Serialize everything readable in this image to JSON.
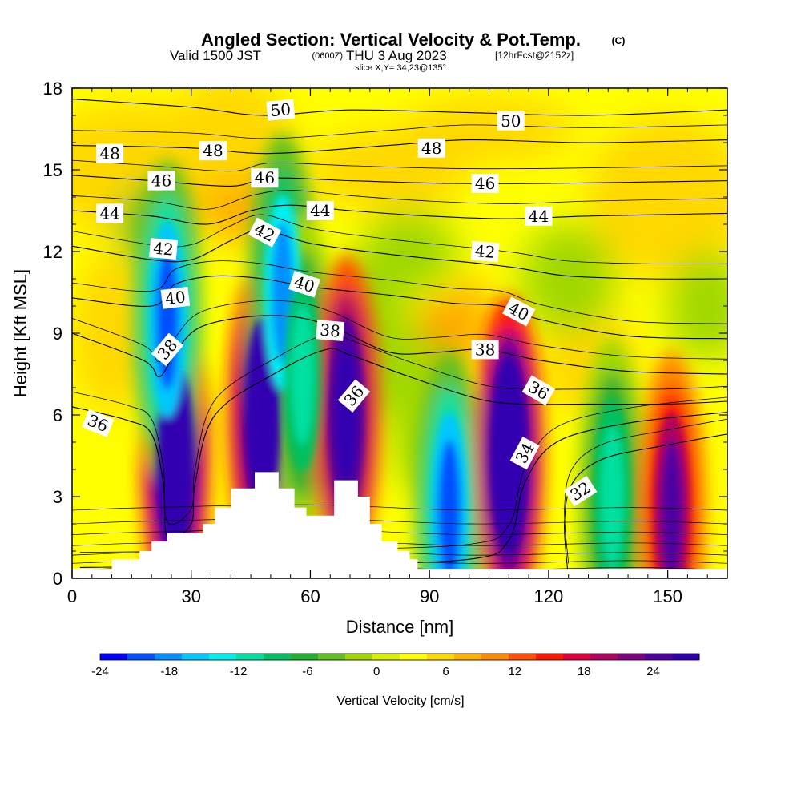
{
  "header": {
    "title": "Angled Section: Vertical Velocity & Pot.Temp.",
    "title_unit": "(C)",
    "valid_prefix": "Valid 1500 JST",
    "valid_utc": "(0600Z)",
    "valid_date": "THU 3 Aug 2023",
    "forecast": "[12hrFcst@2152z]",
    "slice": "slice X,Y= 34,23@135°"
  },
  "chart_data": {
    "type": "heatmap",
    "xlabel": "Distance [nm]",
    "ylabel": "Height [Kft MSL]",
    "xlim": [
      0,
      165
    ],
    "ylim": [
      0,
      18
    ],
    "xticks": [
      0,
      30,
      60,
      90,
      120,
      150
    ],
    "yticks": [
      0,
      3,
      6,
      9,
      12,
      15,
      18
    ],
    "colorbar": {
      "title": "Vertical Velocity [cm/s]",
      "min": -24,
      "max": 28,
      "step": 2,
      "tick_values": [
        -24,
        -18,
        -12,
        -6,
        0,
        6,
        12,
        18,
        24
      ],
      "tick_labels": [
        "-24",
        "-18",
        "-12",
        "-6",
        "0",
        "6",
        "12",
        "18",
        "24"
      ],
      "colors": [
        "#0000ff",
        "#0050ff",
        "#0090ff",
        "#00c8ff",
        "#00f0f0",
        "#00e0a0",
        "#00c060",
        "#20b030",
        "#60c020",
        "#a0d800",
        "#d8f000",
        "#ffff00",
        "#ffd800",
        "#ffb000",
        "#ff8800",
        "#ff5000",
        "#ff1800",
        "#e00040",
        "#b00060",
        "#800080",
        "#5000a0",
        "#3000b0"
      ]
    },
    "velocity_cores": [
      {
        "x": 26,
        "y": 4.5,
        "value": 28
      },
      {
        "x": 24,
        "y": 9.5,
        "value": -22
      },
      {
        "x": 48,
        "y": 6.0,
        "value": 24
      },
      {
        "x": 53,
        "y": 10.5,
        "value": -20
      },
      {
        "x": 58,
        "y": 7.5,
        "value": -14
      },
      {
        "x": 69,
        "y": 6.0,
        "value": 22
      },
      {
        "x": 95,
        "y": 2.5,
        "value": -22
      },
      {
        "x": 110,
        "y": 4.5,
        "value": 28
      },
      {
        "x": 136,
        "y": 3.0,
        "value": -14
      },
      {
        "x": 151,
        "y": 2.5,
        "value": 16
      }
    ],
    "terrain": [
      [
        10,
        0.35
      ],
      [
        10,
        0.7
      ],
      [
        17,
        0.7
      ],
      [
        17,
        1.0
      ],
      [
        20,
        1.0
      ],
      [
        20,
        1.35
      ],
      [
        24,
        1.35
      ],
      [
        24,
        1.65
      ],
      [
        33,
        1.65
      ],
      [
        33,
        2.0
      ],
      [
        36,
        2.0
      ],
      [
        36,
        2.6
      ],
      [
        40,
        2.6
      ],
      [
        40,
        3.3
      ],
      [
        46,
        3.3
      ],
      [
        46,
        3.9
      ],
      [
        52,
        3.9
      ],
      [
        52,
        3.3
      ],
      [
        56,
        3.3
      ],
      [
        56,
        2.6
      ],
      [
        59,
        2.6
      ],
      [
        59,
        2.3
      ],
      [
        66,
        2.3
      ],
      [
        66,
        3.6
      ],
      [
        72,
        3.6
      ],
      [
        72,
        3.0
      ],
      [
        75,
        3.0
      ],
      [
        75,
        2.0
      ],
      [
        78,
        2.0
      ],
      [
        78,
        1.35
      ],
      [
        82,
        1.35
      ],
      [
        82,
        1.0
      ],
      [
        85,
        1.0
      ],
      [
        85,
        0.7
      ],
      [
        87,
        0.7
      ],
      [
        87,
        0.35
      ]
    ],
    "isentropes": [
      {
        "value": 32,
        "points": [
          [
            125,
            0
          ],
          [
            124,
            2
          ],
          [
            126,
            3.5
          ],
          [
            134,
            4.4
          ],
          [
            150,
            4.9
          ],
          [
            165,
            5.3
          ]
        ]
      },
      {
        "value": 34,
        "points": [
          [
            2,
            0.4
          ],
          [
            60,
            0.5
          ],
          [
            100,
            0.7
          ],
          [
            110,
            1.4
          ],
          [
            114,
            3.5
          ],
          [
            122,
            5.0
          ],
          [
            140,
            5.7
          ],
          [
            165,
            6.1
          ]
        ]
      },
      {
        "value": 36,
        "points": [
          [
            0,
            6.3
          ],
          [
            14,
            5.8
          ],
          [
            20,
            5.3
          ],
          [
            23,
            3.5
          ],
          [
            24,
            1.5
          ],
          [
            30,
            2.0
          ],
          [
            31,
            3.5
          ],
          [
            36,
            6.0
          ],
          [
            52,
            7.6
          ],
          [
            64,
            8.4
          ],
          [
            70,
            8.2
          ],
          [
            85,
            7.4
          ],
          [
            102,
            6.6
          ],
          [
            113,
            6.4
          ],
          [
            130,
            6.4
          ],
          [
            150,
            6.4
          ],
          [
            165,
            6.5
          ]
        ]
      },
      {
        "value": 38,
        "points": [
          [
            0,
            9.0
          ],
          [
            18,
            8.0
          ],
          [
            22,
            7.4
          ],
          [
            26,
            8.3
          ],
          [
            32,
            9.2
          ],
          [
            44,
            9.6
          ],
          [
            56,
            9.6
          ],
          [
            66,
            9.2
          ],
          [
            80,
            8.3
          ],
          [
            92,
            8.3
          ],
          [
            104,
            8.4
          ],
          [
            118,
            8.0
          ],
          [
            140,
            7.6
          ],
          [
            165,
            7.5
          ]
        ]
      },
      {
        "value": 40,
        "points": [
          [
            0,
            10.3
          ],
          [
            20,
            10.0
          ],
          [
            26,
            10.8
          ],
          [
            36,
            11.1
          ],
          [
            48,
            11.0
          ],
          [
            60,
            10.7
          ],
          [
            80,
            10.4
          ],
          [
            96,
            10.1
          ],
          [
            108,
            10.0
          ],
          [
            118,
            9.5
          ],
          [
            140,
            8.9
          ],
          [
            165,
            8.8
          ]
        ]
      },
      {
        "value": 42,
        "points": [
          [
            0,
            12.2
          ],
          [
            20,
            11.7
          ],
          [
            30,
            11.7
          ],
          [
            40,
            12.4
          ],
          [
            48,
            12.8
          ],
          [
            60,
            12.3
          ],
          [
            80,
            11.9
          ],
          [
            100,
            11.6
          ],
          [
            112,
            11.4
          ],
          [
            125,
            11.1
          ],
          [
            145,
            11.0
          ],
          [
            165,
            11.0
          ]
        ]
      },
      {
        "value": 44,
        "points": [
          [
            0,
            13.5
          ],
          [
            20,
            13.3
          ],
          [
            34,
            13.0
          ],
          [
            45,
            13.5
          ],
          [
            55,
            13.7
          ],
          [
            70,
            13.5
          ],
          [
            90,
            13.3
          ],
          [
            110,
            13.2
          ],
          [
            130,
            13.3
          ],
          [
            165,
            13.4
          ]
        ]
      },
      {
        "value": 46,
        "points": [
          [
            0,
            14.8
          ],
          [
            20,
            14.6
          ],
          [
            40,
            14.4
          ],
          [
            50,
            14.7
          ],
          [
            70,
            14.6
          ],
          [
            95,
            14.5
          ],
          [
            120,
            14.5
          ],
          [
            165,
            14.6
          ]
        ]
      },
      {
        "value": 48,
        "points": [
          [
            0,
            15.9
          ],
          [
            30,
            15.8
          ],
          [
            50,
            15.6
          ],
          [
            80,
            15.9
          ],
          [
            100,
            16.1
          ],
          [
            130,
            16.0
          ],
          [
            165,
            16.1
          ]
        ]
      },
      {
        "value": 50,
        "points": [
          [
            0,
            17.6
          ],
          [
            30,
            17.3
          ],
          [
            48,
            17.0
          ],
          [
            70,
            17.2
          ],
          [
            100,
            17.1
          ],
          [
            130,
            17.0
          ],
          [
            165,
            17.2
          ]
        ]
      }
    ],
    "contour_labels": [
      {
        "value": "48",
        "x": 9.5,
        "y": 15.6,
        "angle": 0
      },
      {
        "value": "48",
        "x": 35.5,
        "y": 15.7,
        "angle": 0
      },
      {
        "value": "48",
        "x": 90.5,
        "y": 15.8,
        "angle": 0
      },
      {
        "value": "50",
        "x": 52.5,
        "y": 17.2,
        "angle": -5
      },
      {
        "value": "50",
        "x": 110.5,
        "y": 16.8,
        "angle": 0
      },
      {
        "value": "46",
        "x": 22.5,
        "y": 14.6,
        "angle": 0
      },
      {
        "value": "46",
        "x": 48.5,
        "y": 14.7,
        "angle": 0
      },
      {
        "value": "46",
        "x": 104,
        "y": 14.5,
        "angle": 0
      },
      {
        "value": "44",
        "x": 9.5,
        "y": 13.4,
        "angle": 0
      },
      {
        "value": "44",
        "x": 62.5,
        "y": 13.5,
        "angle": 0
      },
      {
        "value": "44",
        "x": 117.5,
        "y": 13.3,
        "angle": 0
      },
      {
        "value": "42",
        "x": 23,
        "y": 12.1,
        "angle": 5
      },
      {
        "value": "42",
        "x": 48.5,
        "y": 12.7,
        "angle": 28
      },
      {
        "value": "42",
        "x": 104,
        "y": 12.0,
        "angle": 5
      },
      {
        "value": "40",
        "x": 26,
        "y": 10.3,
        "angle": -7
      },
      {
        "value": "40",
        "x": 58.5,
        "y": 10.8,
        "angle": 18
      },
      {
        "value": "40",
        "x": 112.5,
        "y": 9.8,
        "angle": 28
      },
      {
        "value": "38",
        "x": 24,
        "y": 8.4,
        "angle": -50
      },
      {
        "value": "38",
        "x": 65,
        "y": 9.1,
        "angle": 5
      },
      {
        "value": "38",
        "x": 104,
        "y": 8.4,
        "angle": 0
      },
      {
        "value": "36",
        "x": 6.5,
        "y": 5.7,
        "angle": 22
      },
      {
        "value": "36",
        "x": 71,
        "y": 6.7,
        "angle": -50
      },
      {
        "value": "36",
        "x": 117.5,
        "y": 6.9,
        "angle": 30
      },
      {
        "value": "34",
        "x": 114,
        "y": 4.6,
        "angle": -62
      },
      {
        "value": "32",
        "x": 128,
        "y": 3.2,
        "angle": -33
      }
    ]
  }
}
